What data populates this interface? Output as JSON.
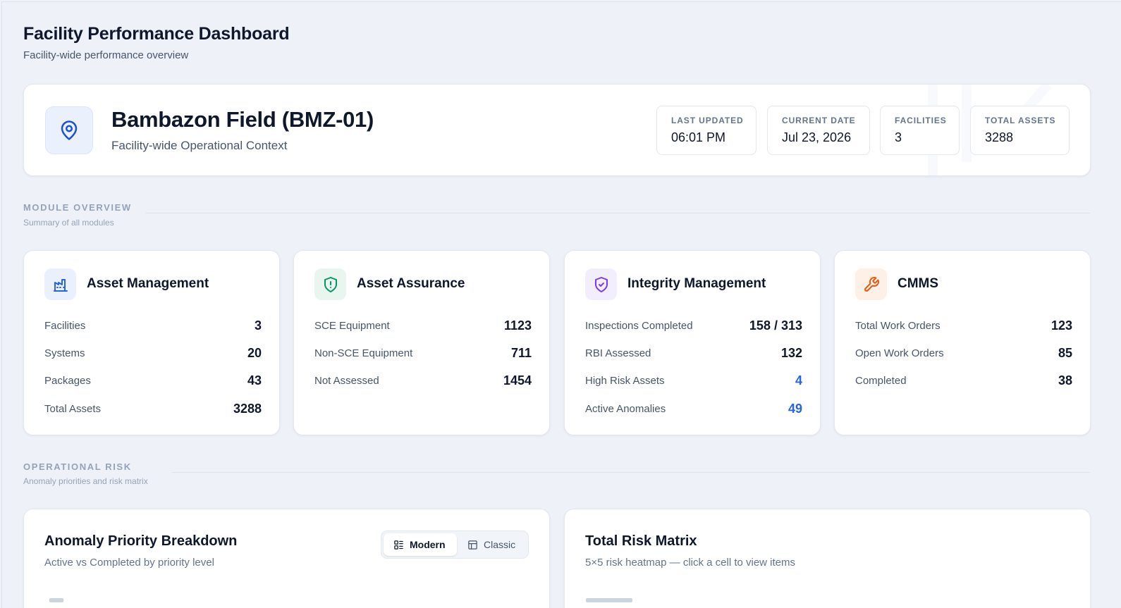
{
  "page": {
    "title": "Facility Performance Dashboard",
    "subtitle": "Facility-wide performance overview"
  },
  "context": {
    "icon": "map-pin-icon",
    "name": "Bambazon Field (BMZ-01)",
    "subtitle": "Facility-wide Operational Context",
    "stats": [
      {
        "label": "LAST UPDATED",
        "value": "06:01 PM"
      },
      {
        "label": "CURRENT DATE",
        "value": "Jul 23, 2026"
      },
      {
        "label": "FACILITIES",
        "value": "3"
      },
      {
        "label": "TOTAL ASSETS",
        "value": "3288"
      }
    ]
  },
  "module_overview": {
    "title": "MODULE OVERVIEW",
    "subtitle": "Summary of all modules",
    "modules": [
      {
        "title": "Asset Management",
        "icon": "factory-icon",
        "rows": [
          {
            "label": "Facilities",
            "value": "3"
          },
          {
            "label": "Systems",
            "value": "20"
          },
          {
            "label": "Packages",
            "value": "43"
          },
          {
            "label": "Total Assets",
            "value": "3288"
          }
        ]
      },
      {
        "title": "Asset Assurance",
        "icon": "shield-alert-icon",
        "rows": [
          {
            "label": "SCE Equipment",
            "value": "1123"
          },
          {
            "label": "Non-SCE Equipment",
            "value": "711"
          },
          {
            "label": "Not Assessed",
            "value": "1454"
          }
        ]
      },
      {
        "title": "Integrity Management",
        "icon": "shield-check-icon",
        "rows": [
          {
            "label": "Inspections Completed",
            "value": "158 / 313"
          },
          {
            "label": "RBI Assessed",
            "value": "132"
          },
          {
            "label": "High Risk Assets",
            "value": "4"
          },
          {
            "label": "Active Anomalies",
            "value": "49"
          }
        ]
      },
      {
        "title": "CMMS",
        "icon": "wrench-icon",
        "rows": [
          {
            "label": "Total Work Orders",
            "value": "123"
          },
          {
            "label": "Open Work Orders",
            "value": "85"
          },
          {
            "label": "Completed",
            "value": "38"
          }
        ]
      }
    ]
  },
  "operational_risk": {
    "title": "OPERATIONAL RISK",
    "subtitle": "Anomaly priorities and risk matrix",
    "anomaly_panel": {
      "title": "Anomaly Priority Breakdown",
      "subtitle": "Active vs Completed by priority level",
      "toggle": {
        "modern": "Modern",
        "classic": "Classic",
        "selected": "Modern"
      }
    },
    "risk_panel": {
      "title": "Total Risk Matrix",
      "subtitle": "5×5 risk heatmap — click a cell to view items"
    }
  },
  "colors": {
    "accent_blue": "#2563eb",
    "asset_assurance_green": "#059669",
    "integrity_purple": "#7c3aed",
    "cmms_orange": "#ea580c"
  }
}
